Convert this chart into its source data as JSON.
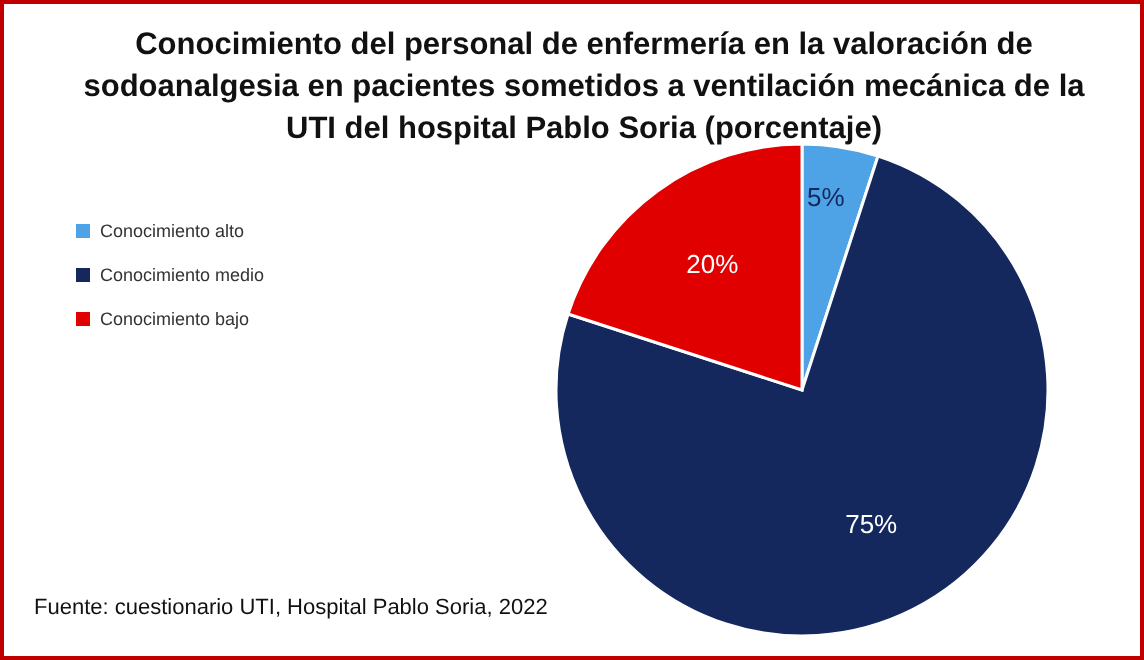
{
  "chart_data": {
    "type": "pie",
    "title": "Conocimiento del personal de enfermería en la valoración de sodoanalgesia en pacientes sometidos a ventilación mecánica de la UTI del hospital Pablo Soria (porcentaje)",
    "categories": [
      "Conocimiento alto",
      "Conocimiento medio",
      "Conocimiento bajo"
    ],
    "values": [
      5,
      75,
      20
    ],
    "colors": [
      "#4ea3e6",
      "#14285e",
      "#e00000"
    ],
    "value_labels": [
      "5%",
      "75%",
      "20%"
    ],
    "legend": "top left",
    "annotations": [
      "Fuente: cuestionario UTI, Hospital Pablo Soria, 2022"
    ]
  }
}
